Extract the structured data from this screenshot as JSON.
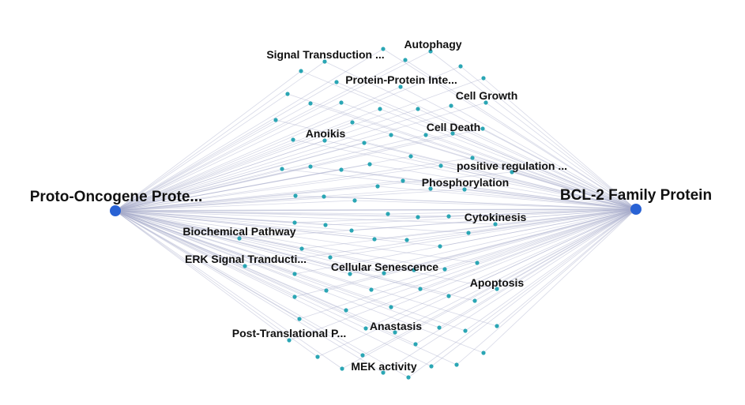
{
  "colors": {
    "hub": "#2962d4",
    "node": "#2aa6b4",
    "edge": "#a7abc9"
  },
  "hubs": [
    {
      "id": "left",
      "label": "Proto-Oncogene Prote..."
    },
    {
      "id": "right",
      "label": "BCL-2 Family Protein"
    }
  ],
  "labels": [
    "Signal Transduction ...",
    "Autophagy",
    "Protein-Protein Inte...",
    "Cell Growth",
    "Anoikis",
    "Cell Death",
    "positive regulation ...",
    "Phosphorylation",
    "Cytokinesis",
    "Biochemical Pathway",
    "ERK Signal Tranducti...",
    "Cellular Senescence",
    "Apoptosis",
    "Anastasis",
    "Post-Translational P...",
    "MEK activity"
  ]
}
